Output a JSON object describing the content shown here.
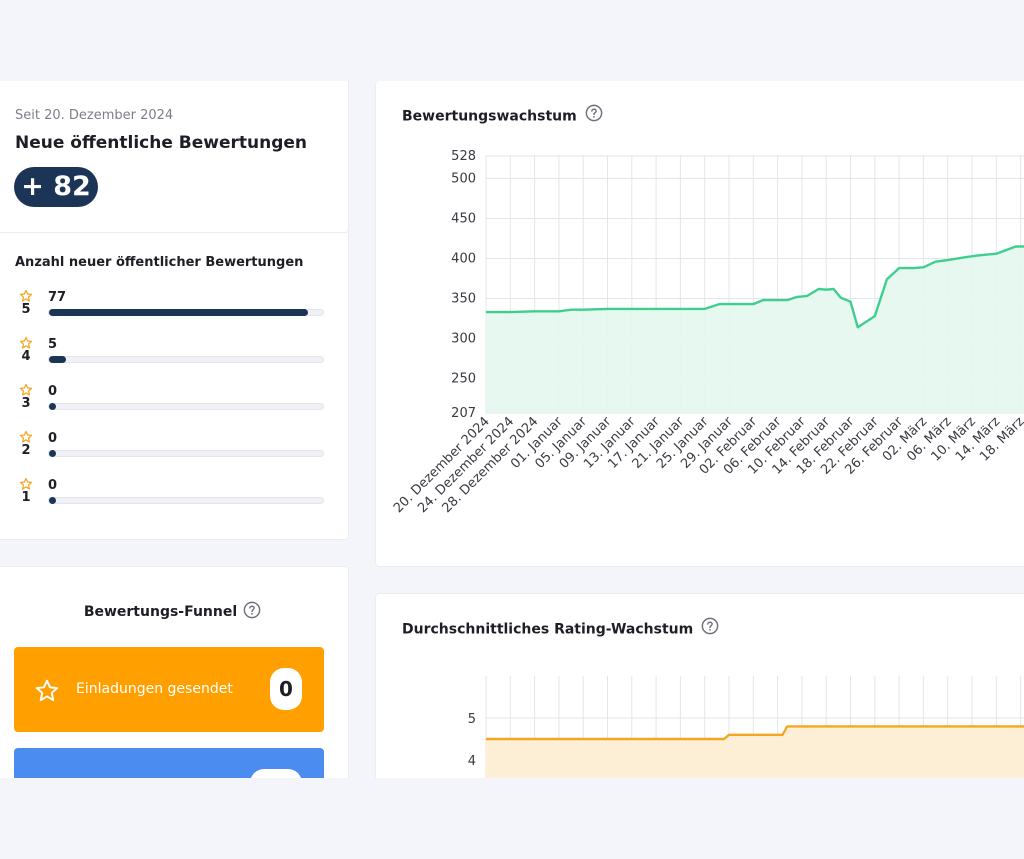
{
  "summary": {
    "since": "Seit 20. Dezember 2024",
    "title": "Neue öffentliche Bewertungen",
    "count": "+ 82"
  },
  "distribution": {
    "title": "Anzahl neuer öffentlicher Bewertungen",
    "rows": [
      {
        "stars": "5",
        "count": "77",
        "fraction": 0.94
      },
      {
        "stars": "4",
        "count": "5",
        "fraction": 0.06
      },
      {
        "stars": "3",
        "count": "0",
        "fraction": 0
      },
      {
        "stars": "2",
        "count": "0",
        "fraction": 0
      },
      {
        "stars": "1",
        "count": "0",
        "fraction": 0
      }
    ]
  },
  "funnel": {
    "title": "Bewertungs-Funnel",
    "steps": [
      {
        "label": "Einladungen gesendet",
        "value": "0",
        "icon": "star-icon",
        "color": "#ffa000"
      },
      {
        "label": "",
        "value": "",
        "icon": "",
        "color": "#4a8cf0"
      }
    ]
  },
  "colors": {
    "navy": "#1c3557",
    "green": "#3ecf8e",
    "green_fill": "#e3f7ee",
    "orange": "#f5a623",
    "orange_fill": "#fdefd5",
    "star": "#f5a623"
  },
  "chart_data": [
    {
      "type": "area",
      "title": "Bewertungswachstum",
      "ylim": [
        207,
        528
      ],
      "yticks": [
        528,
        500,
        450,
        400,
        350,
        300,
        250,
        207
      ],
      "categories": [
        "20. Dezember 2024",
        "24. Dezember 2024",
        "28. Dezember 2024",
        "01. Januar",
        "05. Januar",
        "09. Januar",
        "13. Januar",
        "17. Januar",
        "21. Januar",
        "25. Januar",
        "29. Januar",
        "02. Februar",
        "06. Februar",
        "10. Februar",
        "14. Februar",
        "18. Februar",
        "22. Februar",
        "26. Februar",
        "02. März",
        "06. März",
        "10. März",
        "14. März",
        "18. März"
      ],
      "x": [
        0,
        1,
        2,
        3,
        3.5,
        4,
        5,
        6,
        7,
        7.5,
        8,
        9,
        9.6,
        10,
        11,
        11.4,
        11.8,
        12.4,
        12.8,
        13.2,
        13.7,
        14.0,
        14.3,
        14.6,
        15.0,
        15.3,
        16,
        16.5,
        17,
        17.6,
        18,
        18.5,
        19,
        19.8,
        20.3,
        21,
        21.8,
        22.3,
        22.6
      ],
      "values": [
        333,
        333,
        334,
        334,
        336,
        336,
        337,
        337,
        337,
        337,
        337,
        337,
        343,
        343,
        343,
        348,
        348,
        348,
        352,
        353,
        362,
        361,
        362,
        351,
        346,
        314,
        328,
        374,
        388,
        388,
        389,
        396,
        398,
        402,
        404,
        406,
        415,
        415,
        420
      ],
      "grid": true,
      "series_color": "#3ecf8e"
    },
    {
      "type": "area",
      "title": "Durchschnittliches Rating-Wachstum",
      "yticks": [
        5,
        4
      ],
      "x": [
        0,
        9.8,
        10,
        12.2,
        12.4,
        22.6
      ],
      "values": [
        4.5,
        4.5,
        4.6,
        4.6,
        4.8,
        4.8
      ],
      "grid": true,
      "series_color": "#f5a623"
    }
  ]
}
